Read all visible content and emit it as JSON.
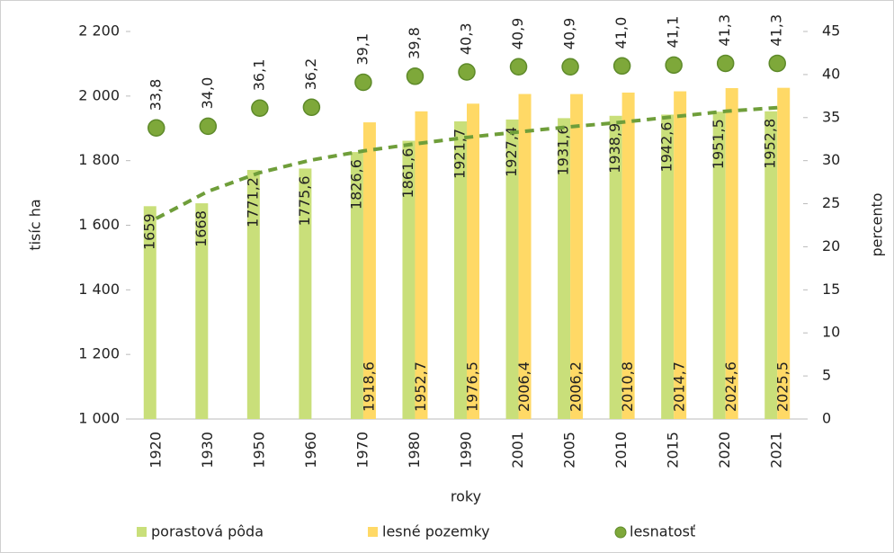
{
  "chart_data": {
    "type": "bar",
    "categories": [
      "1920",
      "1930",
      "1950",
      "1960",
      "1970",
      "1980",
      "1990",
      "2001",
      "2005",
      "2010",
      "2015",
      "2020",
      "2021"
    ],
    "xlabel": "roky",
    "ylabel": "tisíc ha",
    "y2label": "percento",
    "ylim": [
      1000,
      2200
    ],
    "yticks": [
      {
        "value": 1000,
        "label": "1 000"
      },
      {
        "value": 1200,
        "label": "1 200"
      },
      {
        "value": 1400,
        "label": "1 400"
      },
      {
        "value": 1600,
        "label": "1 600"
      },
      {
        "value": 1800,
        "label": "1 800"
      },
      {
        "value": 2000,
        "label": "2 000"
      },
      {
        "value": 2200,
        "label": "2 200"
      }
    ],
    "y2lim": [
      0,
      45
    ],
    "y2ticks": [
      0,
      5,
      10,
      15,
      20,
      25,
      30,
      35,
      40,
      45
    ],
    "legend": "bottom",
    "series": [
      {
        "name": "porastová pôda",
        "type": "bar",
        "color": "#c9df7a",
        "values": [
          1659,
          1668,
          1771.2,
          1775.6,
          1826.6,
          1861.6,
          1921.7,
          1927.4,
          1931.6,
          1938.9,
          1942.6,
          1951.5,
          1952.8
        ],
        "value_labels": [
          "1659",
          "1668",
          "1771,2",
          "1775,6",
          "1826,6",
          "1861,6",
          "1921,7",
          "1927,4",
          "1931,6",
          "1938,9",
          "1942,6",
          "1951,5",
          "1952,8"
        ]
      },
      {
        "name": "lesné pozemky",
        "type": "bar",
        "color": "#ffd966",
        "values": [
          null,
          null,
          null,
          null,
          1918.6,
          1952.7,
          1976.5,
          2006.4,
          2006.2,
          2010.8,
          2014.7,
          2024.6,
          2025.5
        ],
        "value_labels": [
          null,
          null,
          null,
          null,
          "1918,6",
          "1952,7",
          "1976,5",
          "2006,4",
          "2006,2",
          "2010,8",
          "2014,7",
          "2024,6",
          "2025,5"
        ]
      },
      {
        "name": "lesnatosť",
        "type": "scatter",
        "axis": "y2",
        "color": "#7ea83a",
        "values": [
          33.8,
          34.0,
          36.1,
          36.2,
          39.1,
          39.8,
          40.3,
          40.9,
          40.9,
          41.0,
          41.1,
          41.3,
          41.3
        ],
        "value_labels": [
          "33,8",
          "34,0",
          "36,1",
          "36,2",
          "39,1",
          "39,8",
          "40,3",
          "40,9",
          "40,9",
          "41,0",
          "41,1",
          "41,3",
          "41,3"
        ]
      }
    ],
    "trendline": {
      "color": "#6f9e3a",
      "values": [
        1621,
        1705,
        1763,
        1802,
        1830,
        1852,
        1872,
        1889,
        1905,
        1919,
        1936,
        1953,
        1964
      ]
    }
  }
}
